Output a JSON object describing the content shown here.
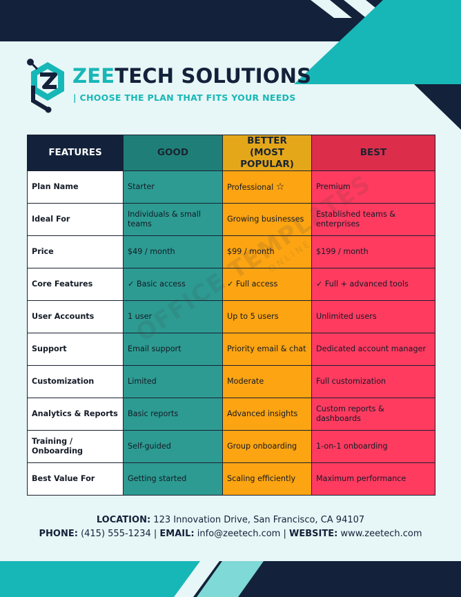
{
  "header": {
    "title_accent": "ZEE",
    "title_rest": "TECH SOLUTIONS",
    "subtitle": "| CHOOSE THE PLAN THAT FITS YOUR NEEDS"
  },
  "table": {
    "headers": {
      "features": "FEATURES",
      "good": "GOOD",
      "better_line1": "BETTER",
      "better_line2": "(MOST POPULAR)",
      "best": "BEST"
    },
    "rows": [
      {
        "feature": "Plan Name",
        "good": "Starter",
        "better": "Professional",
        "best": "Premium"
      },
      {
        "feature": "Ideal For",
        "good": "Individuals & small teams",
        "better": "Growing businesses",
        "best": "Established teams & enterprises"
      },
      {
        "feature": "Price",
        "good": "$49 / month",
        "better": "$99 / month",
        "best": "$199 / month"
      },
      {
        "feature": "Core Features",
        "good": "✓ Basic access",
        "better": "✓ Full access",
        "best": "✓ Full + advanced tools"
      },
      {
        "feature": "User Accounts",
        "good": "1 user",
        "better": "Up to 5 users",
        "best": "Unlimited users"
      },
      {
        "feature": "Support",
        "good": "Email support",
        "better": "Priority email & chat",
        "best": "Dedicated account manager"
      },
      {
        "feature": "Customization",
        "good": "Limited",
        "better": "Moderate",
        "best": "Full customization"
      },
      {
        "feature": "Analytics & Reports",
        "good": "Basic reports",
        "better": "Advanced insights",
        "best": "Custom reports & dashboards"
      },
      {
        "feature": "Training / Onboarding",
        "good": "Self-guided",
        "better": "Group onboarding",
        "best": "1-on-1 onboarding"
      },
      {
        "feature": "Best Value For",
        "good": "Getting started",
        "better": "Scaling efficiently",
        "best": "Maximum performance"
      }
    ]
  },
  "watermark": {
    "main": "OFFICE TEMPLATES",
    "sub": "ONLINE"
  },
  "footer": {
    "location_label": "LOCATION:",
    "location_value": "123 Innovation Drive, San Francisco, CA 94107",
    "phone_label": "PHONE:",
    "phone_value": "(415) 555-1234",
    "separator": "|",
    "email_label": "EMAIL:",
    "email_value": "info@zeetech.com",
    "website_label": "WEBSITE:",
    "website_value": "www.zeetech.com"
  },
  "icons": {
    "star": "star-icon",
    "logo": "hexagon-z-logo-icon"
  },
  "colors": {
    "navy": "#13213a",
    "teal": "#18b7b7",
    "good": "#2d9b92",
    "better": "#fca412",
    "best": "#ff3b60",
    "background": "#e7f6f6"
  }
}
